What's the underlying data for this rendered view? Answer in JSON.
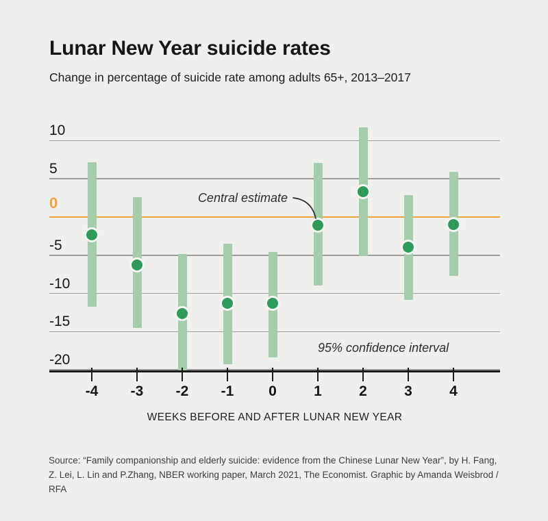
{
  "title": "Lunar New Year suicide rates",
  "subtitle": "Change in percentage of suicide rate among adults 65+, 2013–2017",
  "annotations": {
    "central_estimate": "Central estimate",
    "confidence_interval": "95% confidence interval"
  },
  "source": "Source: “Family companionship and elderly suicide: evidence from the Chinese Lunar New Year”, by H. Fang, Z. Lei, L. Lin and P.Zhang, NBER working paper, March 2021, The Economist. Graphic by Amanda Weisbrod / RFA",
  "colors": {
    "background": "#efefed",
    "ci_bar_green": "#a5ccab",
    "dot_green": "#2f9b5b",
    "dot_ring": "#f6f6f4",
    "zero_line_orange": "#f1a43d",
    "zero_label_orange": "#eda33c",
    "gridline_gray": "#9c9c9a",
    "axis_black": "#1a1a1a",
    "text_black": "#161616"
  },
  "chart_data": {
    "type": "scatter",
    "subtype": "dot-with-95ci-interval-bars",
    "x": [
      -4,
      -3,
      -2,
      -1,
      0,
      1,
      2,
      3,
      4
    ],
    "series": [
      {
        "name": "Central estimate",
        "values": [
          -2.3,
          -6.3,
          -12.6,
          -11.3,
          -11.3,
          -1.1,
          3.3,
          -3.9,
          -1.0
        ]
      },
      {
        "name": "95% CI lower",
        "values": [
          -11.7,
          -14.5,
          -20.1,
          -19.3,
          -18.4,
          -9.0,
          -5.1,
          -10.8,
          -7.7
        ]
      },
      {
        "name": "95% CI upper",
        "values": [
          7.2,
          2.6,
          -4.8,
          -3.5,
          -4.6,
          7.1,
          11.7,
          2.9,
          5.9
        ]
      }
    ],
    "xlabel": "WEEKS BEFORE AND AFTER LUNAR NEW YEAR",
    "ylabel": "",
    "y_ticks": [
      10,
      5,
      0,
      -5,
      -10,
      -15,
      -20
    ],
    "ylim": [
      -21.5,
      12.5
    ],
    "grid": true,
    "zero_line": true,
    "legend_position": "none"
  }
}
